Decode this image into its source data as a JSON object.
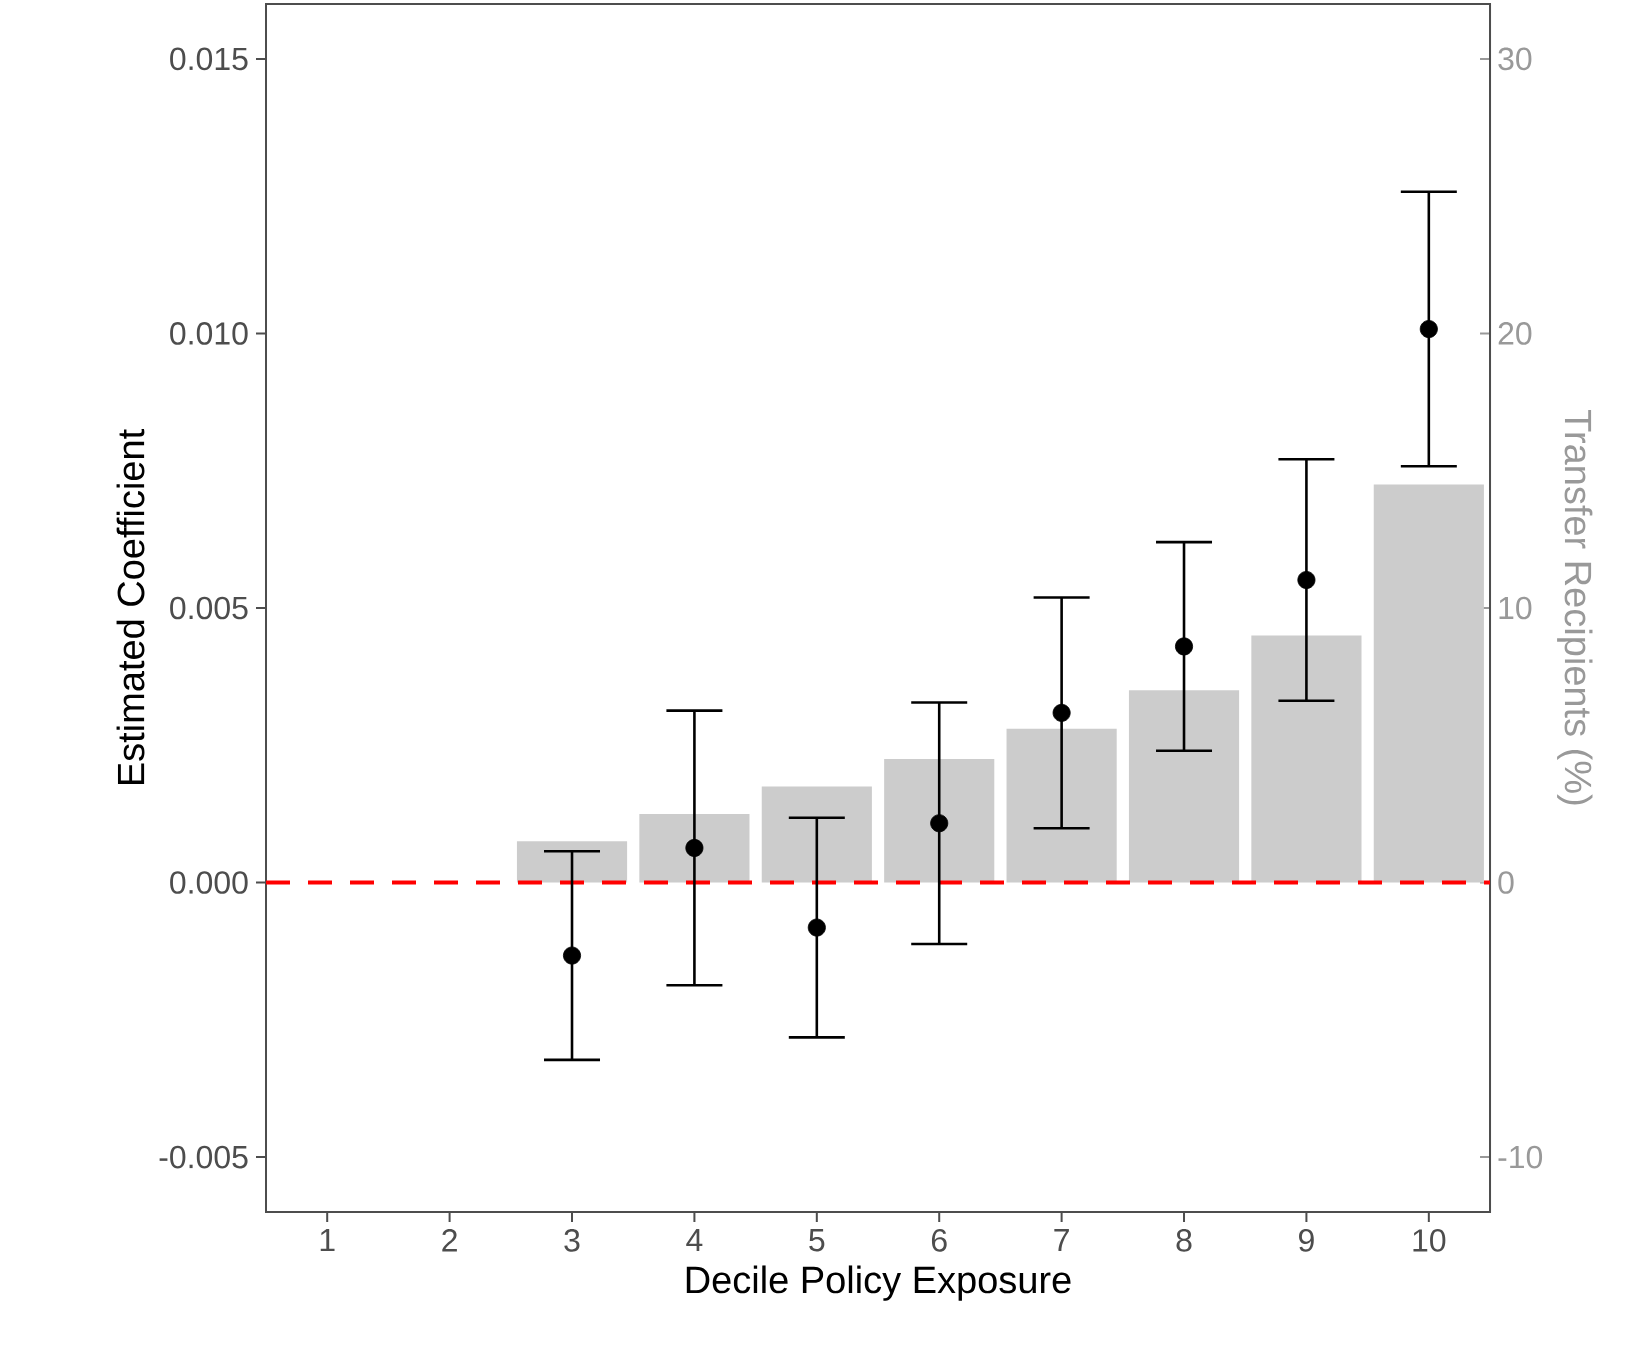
{
  "chart_data": {
    "type": "scatter",
    "xlabel": "Decile Policy Exposure",
    "ylabel": "Estimated Coefficient",
    "y2label": "Transfer Recipients (%)",
    "categories": [
      "1",
      "2",
      "3",
      "4",
      "5",
      "6",
      "7",
      "8",
      "9",
      "10"
    ],
    "ylim": [
      -0.006,
      0.016
    ],
    "yticks": [
      {
        "value": -0.005,
        "label": "-0.005"
      },
      {
        "value": 0,
        "label": "0.000"
      },
      {
        "value": 0.005,
        "label": "0.005"
      },
      {
        "value": 0.01,
        "label": "0.010"
      },
      {
        "value": 0.015,
        "label": "0.015"
      }
    ],
    "y2lim": [
      -12,
      32
    ],
    "y2ticks": [
      -10,
      0,
      10,
      20,
      30
    ],
    "series": [
      {
        "type": "bar",
        "axis": "y2",
        "color": "#cccccc",
        "values": [
          null,
          null,
          1.5,
          2.5,
          3.5,
          4.5,
          5.6,
          7.0,
          9.0,
          14.5
        ]
      },
      {
        "color": "#000000",
        "values": [
          null,
          null,
          -0.00133,
          0.00063,
          -0.00082,
          0.00108,
          0.00309,
          0.0043,
          0.00551,
          0.01008
        ],
        "errors": [
          null,
          null,
          0.0019,
          0.0025,
          0.002,
          0.0022,
          0.0021,
          0.0019,
          0.0022,
          0.0025
        ]
      }
    ],
    "ref_lines": [
      {
        "axis": "y",
        "value": 0,
        "color": "#ff0000",
        "line_style": "dashed"
      }
    ]
  }
}
